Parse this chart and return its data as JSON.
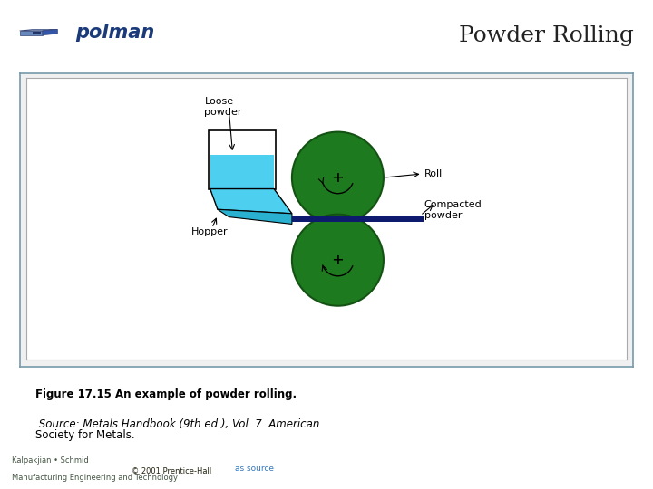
{
  "title": "Powder Rolling",
  "title_fontsize": 18,
  "title_color": "#222222",
  "header_bg": "#c8d8e8",
  "slide_bg": "#ffffff",
  "caption_bold": "Figure 17.15 An example of powder rolling.",
  "caption_italic": " Source: Metals Handbook (9th ed.), Vol. 7. American",
  "caption_line2": "Society for Metals.",
  "footer_left1": "Kalpakjian • Schmid",
  "footer_left2": "Manufacturing Engineering and Technology",
  "footer_center": "© 2001 Prentice-Hall",
  "footer_right": "as source",
  "roll_color": "#1e7a1e",
  "roll_edge_color": "#145214",
  "hopper_fill": "#4dcfef",
  "hopper_dark": "#2ab0d0",
  "compacted_color": "#0d1a6e",
  "diagram_bg": "#ffffff",
  "label_fontsize": 8
}
